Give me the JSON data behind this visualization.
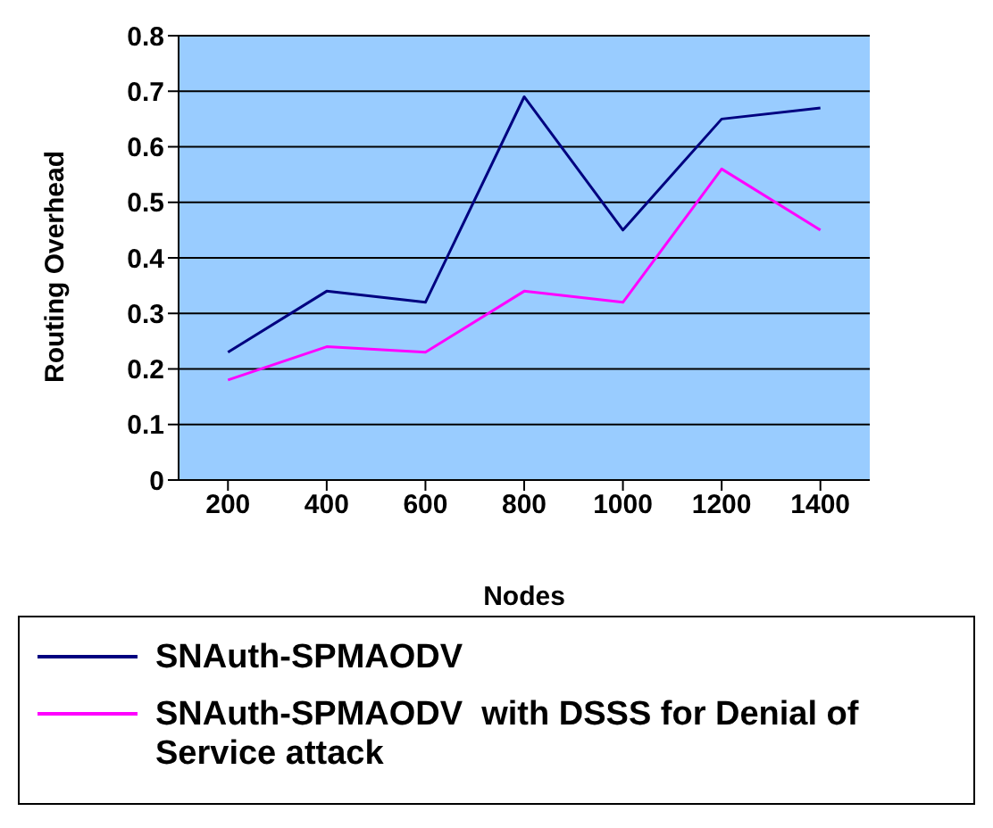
{
  "chart_data": {
    "type": "line",
    "xlabel": "Nodes",
    "ylabel": "Routing Overhead",
    "categories": [
      "200",
      "400",
      "600",
      "800",
      "1000",
      "1200",
      "1400"
    ],
    "series": [
      {
        "name": "SNAuth-SPMAODV",
        "color": "#000080",
        "values": [
          0.23,
          0.34,
          0.32,
          0.69,
          0.45,
          0.65,
          0.67
        ]
      },
      {
        "name": "SNAuth-SPMAODV  with DSSS for Denial of Service attack",
        "color": "#ff00ff",
        "values": [
          0.18,
          0.24,
          0.23,
          0.34,
          0.32,
          0.56,
          0.45
        ]
      }
    ],
    "ylim": [
      0,
      0.8
    ],
    "yticks": [
      0,
      0.1,
      0.2,
      0.3,
      0.4,
      0.5,
      0.6,
      0.7,
      0.8
    ],
    "grid": "y",
    "legend": "bottom"
  }
}
